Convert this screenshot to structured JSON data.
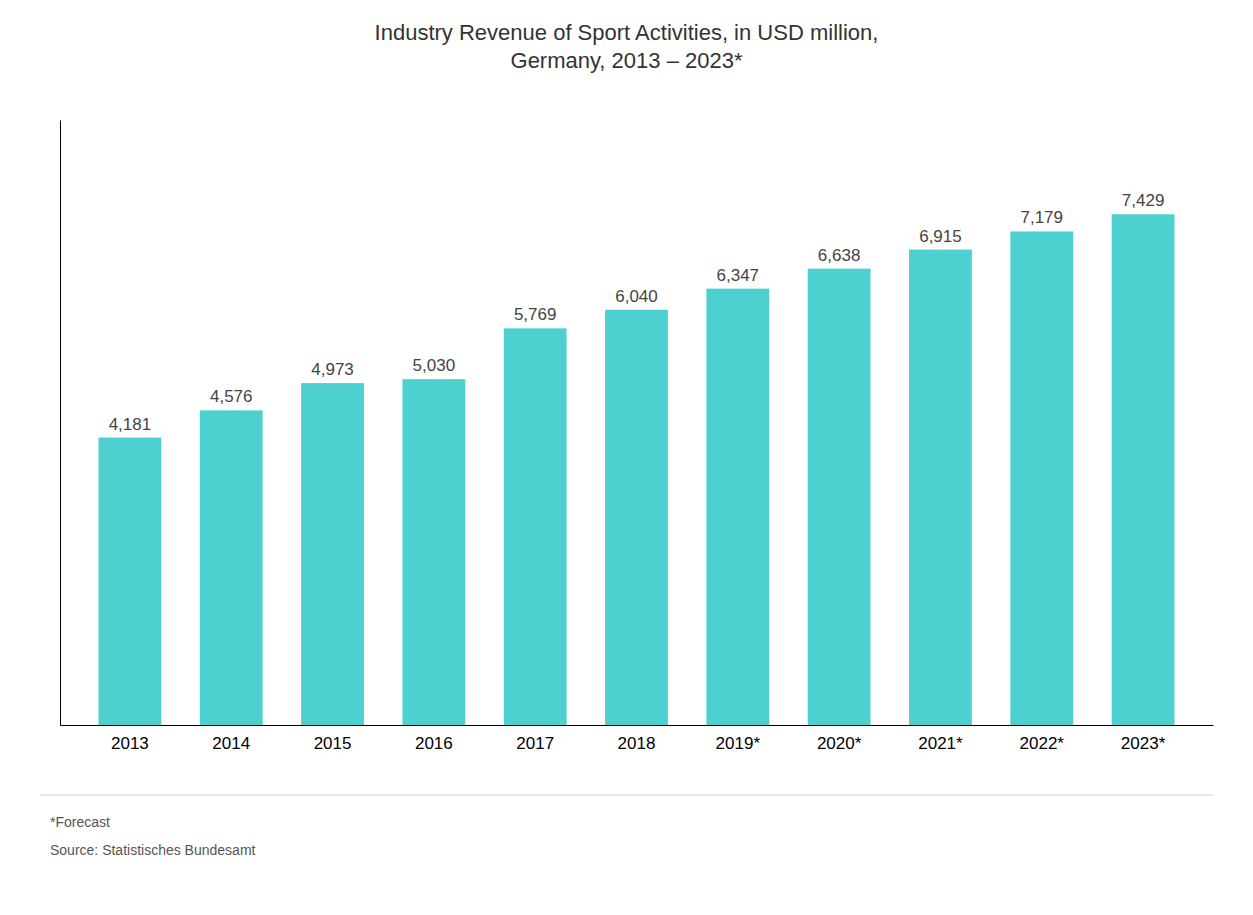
{
  "chart_data": {
    "type": "bar",
    "title": "Industry Revenue of Sport Activities, in USD million,\nGermany, 2013 – 2023*",
    "categories": [
      "2013",
      "2014",
      "2015",
      "2016",
      "2017",
      "2018",
      "2019*",
      "2020*",
      "2021*",
      "2022*",
      "2023*"
    ],
    "values": [
      4181,
      4576,
      4973,
      5030,
      5769,
      6040,
      6347,
      6638,
      6915,
      7179,
      7429
    ],
    "value_labels": [
      "4,181",
      "4,576",
      "4,973",
      "5,030",
      "5,769",
      "6,040",
      "6,347",
      "6,638",
      "6,915",
      "7,179",
      "7,429"
    ],
    "color": "#4DD0D0",
    "ylim": [
      0,
      8800
    ],
    "grid": false,
    "data_labels": true,
    "tick_labels": "x",
    "annotations": [
      "*Forecast",
      "Source: Statistisches Bundesamt"
    ]
  }
}
